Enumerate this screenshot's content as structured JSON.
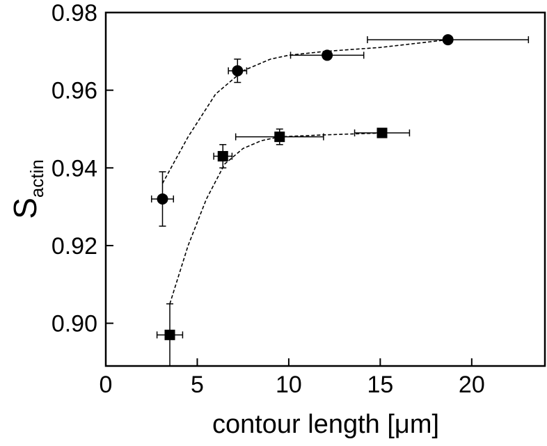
{
  "chart_data": {
    "type": "scatter",
    "title": "",
    "xlabel": "contour length [μm]",
    "ylabel": {
      "main": "S",
      "subscript": "actin"
    },
    "xlim": [
      0,
      24
    ],
    "ylim": [
      0.889,
      0.98
    ],
    "x_ticks": [
      0,
      5,
      10,
      15,
      20
    ],
    "x_tick_labels": [
      "0",
      "5",
      "10",
      "15",
      "20"
    ],
    "y_ticks": [
      0.9,
      0.92,
      0.94,
      0.96,
      0.98
    ],
    "y_tick_labels": [
      "0.90",
      "0.92",
      "0.94",
      "0.96",
      "0.98"
    ],
    "grid": false,
    "legend": "none",
    "colors": {
      "marker": "#000000",
      "line": "#000000"
    },
    "series": [
      {
        "marker": "circle",
        "points": [
          {
            "x": 3.1,
            "y": 0.932,
            "xerr": 0.6,
            "yerr": 0.007
          },
          {
            "x": 7.2,
            "y": 0.965,
            "xerr": 0.5,
            "yerr": 0.003
          },
          {
            "x": 12.1,
            "y": 0.969,
            "xerr": 2.0,
            "yerr": 0.0
          },
          {
            "x": 18.7,
            "y": 0.973,
            "xerr": 4.4,
            "yerr": 0.0
          }
        ],
        "fit": [
          [
            3.1,
            0.936
          ],
          [
            4.5,
            0.948
          ],
          [
            6,
            0.959
          ],
          [
            7.5,
            0.965
          ],
          [
            9,
            0.968
          ],
          [
            10,
            0.969
          ],
          [
            12,
            0.97
          ],
          [
            15,
            0.971
          ],
          [
            18.7,
            0.973
          ]
        ]
      },
      {
        "marker": "square",
        "points": [
          {
            "x": 3.5,
            "y": 0.897,
            "xerr": 0.7,
            "yerr": 0.008
          },
          {
            "x": 6.4,
            "y": 0.943,
            "xerr": 0.5,
            "yerr": 0.003
          },
          {
            "x": 9.5,
            "y": 0.948,
            "xerr": 2.4,
            "yerr": 0.002
          },
          {
            "x": 15.1,
            "y": 0.949,
            "xerr": 1.5,
            "yerr": 0.0
          }
        ],
        "fit": [
          [
            3.5,
            0.905
          ],
          [
            4.5,
            0.92
          ],
          [
            5.5,
            0.932
          ],
          [
            6.5,
            0.941
          ],
          [
            7.5,
            0.945
          ],
          [
            8.5,
            0.947
          ],
          [
            9.5,
            0.948
          ],
          [
            12,
            0.9485
          ],
          [
            15.1,
            0.949
          ]
        ]
      }
    ]
  }
}
